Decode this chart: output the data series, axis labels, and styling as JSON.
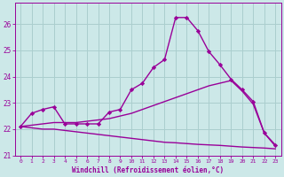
{
  "xlabel": "Windchill (Refroidissement éolien,°C)",
  "xlim": [
    -0.5,
    23.5
  ],
  "ylim": [
    21.0,
    26.8
  ],
  "yticks": [
    21,
    22,
    23,
    24,
    25,
    26
  ],
  "xticks": [
    0,
    1,
    2,
    3,
    4,
    5,
    6,
    7,
    8,
    9,
    10,
    11,
    12,
    13,
    14,
    15,
    16,
    17,
    18,
    19,
    20,
    21,
    22,
    23
  ],
  "bg_color": "#cce8e8",
  "grid_color": "#aacece",
  "line_color": "#990099",
  "line1_x": [
    0,
    1,
    2,
    3,
    4,
    5,
    6,
    7,
    8,
    9,
    10,
    11,
    12,
    13,
    14,
    15,
    16,
    17,
    18,
    19,
    20,
    21,
    22,
    23
  ],
  "line1_y": [
    22.1,
    22.6,
    22.75,
    22.85,
    22.2,
    22.2,
    22.2,
    22.2,
    22.65,
    22.75,
    23.5,
    23.75,
    24.35,
    24.65,
    26.25,
    26.25,
    25.75,
    24.95,
    24.45,
    23.9,
    23.5,
    23.05,
    21.85,
    21.4
  ],
  "line2_x": [
    0,
    1,
    2,
    3,
    4,
    5,
    6,
    7,
    8,
    9,
    10,
    11,
    12,
    13,
    14,
    15,
    16,
    17,
    18,
    19,
    20,
    21,
    22,
    23
  ],
  "line2_y": [
    22.1,
    22.15,
    22.2,
    22.25,
    22.25,
    22.25,
    22.3,
    22.35,
    22.4,
    22.5,
    22.6,
    22.75,
    22.9,
    23.05,
    23.2,
    23.35,
    23.5,
    23.65,
    23.75,
    23.85,
    23.45,
    22.95,
    21.85,
    21.35
  ],
  "line3_x": [
    0,
    1,
    2,
    3,
    4,
    5,
    6,
    7,
    8,
    9,
    10,
    11,
    12,
    13,
    14,
    15,
    16,
    17,
    18,
    19,
    20,
    21,
    22,
    23
  ],
  "line3_y": [
    22.1,
    22.05,
    22.0,
    22.0,
    21.95,
    21.9,
    21.85,
    21.8,
    21.75,
    21.7,
    21.65,
    21.6,
    21.55,
    21.5,
    21.48,
    21.45,
    21.42,
    21.4,
    21.38,
    21.35,
    21.32,
    21.3,
    21.28,
    21.25
  ]
}
